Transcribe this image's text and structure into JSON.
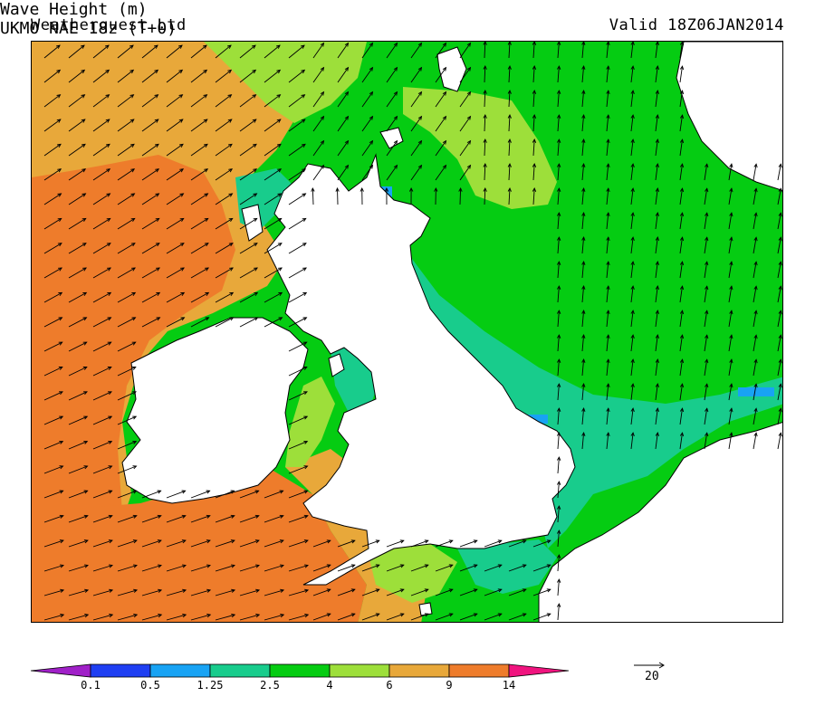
{
  "header": {
    "company": "Weatherquest Ltd",
    "valid_time": "Valid 18Z06JAN2014"
  },
  "footer": {
    "parameter": "Wave Height (m)",
    "model": "UKMO NAE 18z (T+0)"
  },
  "legend": {
    "ticks": [
      "0.1",
      "0.5",
      "1.25",
      "2.5",
      "4",
      "6",
      "9",
      "14"
    ],
    "colors": [
      "#a020c8",
      "#1f3ff2",
      "#18a3f4",
      "#18cc8c",
      "#05cc12",
      "#9ddf3a",
      "#e8a83a",
      "#ee7c2b",
      "#f0147f"
    ],
    "reference_vector": "20"
  },
  "map": {
    "land_color": "#ffffff",
    "coast_color": "#000000",
    "arrow_color": "#000000"
  }
}
